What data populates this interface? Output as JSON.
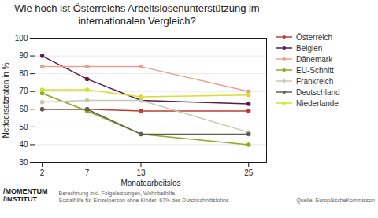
{
  "chart_data": {
    "type": "line",
    "title": "Wie hoch ist Österreichs Arbeitslosenunterstützung im\ninternationalen Vergleich?",
    "xlabel": "Monatearbeitslos",
    "ylabel": "Nettoersatzraten in %",
    "x": [
      2,
      7,
      13,
      25
    ],
    "series": [
      {
        "name": "Österreich",
        "color": "#b5413a",
        "values": [
          60,
          60,
          59,
          59
        ]
      },
      {
        "name": "Belgien",
        "color": "#5c1a4a",
        "values": [
          90,
          77,
          65,
          63
        ]
      },
      {
        "name": "Dänemark",
        "color": "#e8a090",
        "values": [
          84,
          84,
          84,
          70
        ]
      },
      {
        "name": "EU-Schnitt",
        "color": "#8aac1a",
        "values": [
          69,
          59,
          46,
          40
        ]
      },
      {
        "name": "Frankreich",
        "color": "#c8c8b0",
        "values": [
          64,
          65,
          65,
          47
        ]
      },
      {
        "name": "Deutschland",
        "color": "#606050",
        "values": [
          60,
          60,
          46,
          46
        ]
      },
      {
        "name": "Niederlande",
        "color": "#d4e030",
        "values": [
          71,
          71,
          67,
          68
        ]
      }
    ],
    "xlim": [
      1.2,
      27
    ],
    "xticks": [
      2,
      7,
      13,
      25
    ],
    "ylim": [
      30,
      100
    ],
    "yticks": [
      30,
      40,
      50,
      60,
      70,
      80,
      90,
      100
    ],
    "grid": "y",
    "legend": "right",
    "marker": "circle",
    "annotations": [
      [
        "/MOMENTUM",
        "/INSTITUT"
      ],
      [
        "Berechnung inkl. Folgeleistungen, Wohnbeihilfe,",
        "Sozialhilfe für Einzelperson ohne Kinder, 67% des Durchschnittslohns"
      ],
      [
        "Quelle: EuropäischeKommisson"
      ]
    ]
  }
}
